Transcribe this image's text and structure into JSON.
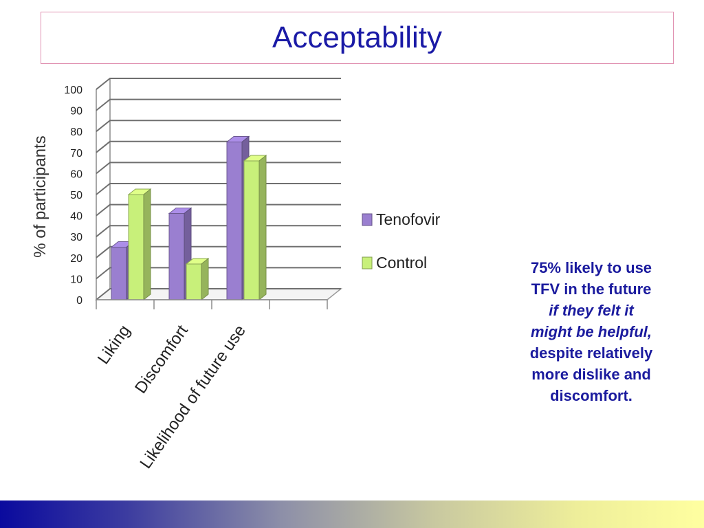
{
  "slide": {
    "title": "Acceptability",
    "note": {
      "line1": "75% likely to use",
      "line2": "TFV in the future",
      "line3": "if they felt it",
      "line4": "might be helpful,",
      "line5": "despite relatively",
      "line6": "more dislike and",
      "line7": "discomfort."
    }
  },
  "chart_data": {
    "type": "bar",
    "categories": [
      "Liking",
      "Discomfort",
      "Likelihood of future use"
    ],
    "series": [
      {
        "name": "Tenofovir",
        "values": [
          25,
          41,
          75
        ],
        "color": "#9a7fd0"
      },
      {
        "name": "Control",
        "values": [
          50,
          17,
          66
        ],
        "color": "#c8f07a"
      }
    ],
    "ylabel": "% of participants",
    "xlabel": "",
    "ylim": [
      0,
      100
    ],
    "yticks": [
      0,
      10,
      20,
      30,
      40,
      50,
      60,
      70,
      80,
      90,
      100
    ],
    "grid": true,
    "legend_position": "right",
    "style": "3d-clustered-column"
  }
}
